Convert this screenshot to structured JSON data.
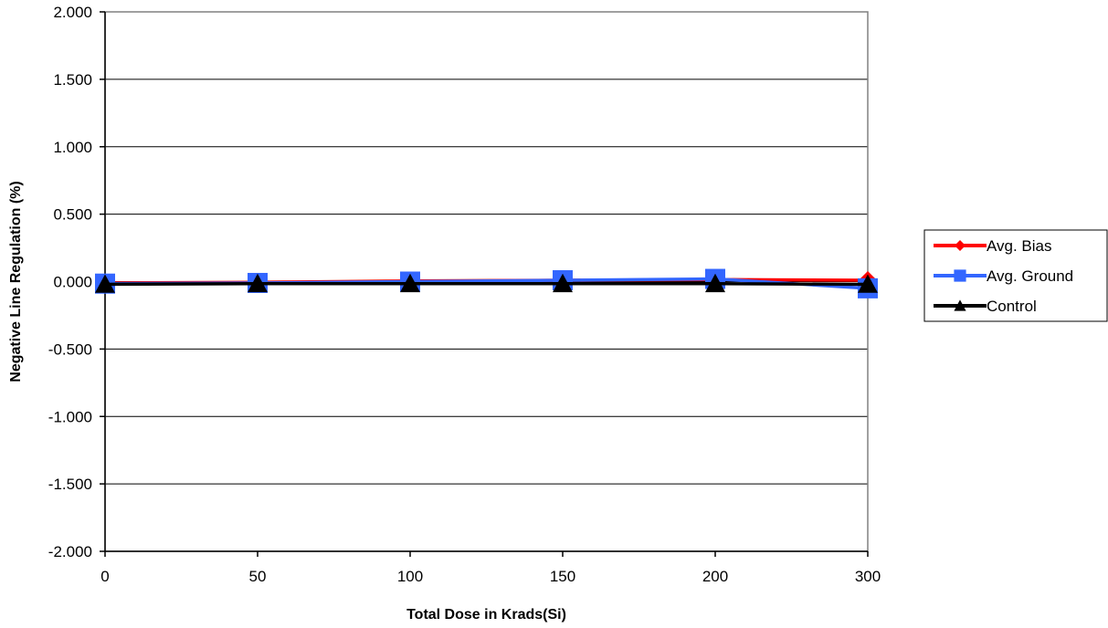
{
  "chart_data": {
    "type": "line",
    "title": "",
    "xlabel": "Total Dose in Krads(Si)",
    "ylabel": "Negative Line Regulation (%)",
    "categories": [
      "0",
      "50",
      "100",
      "150",
      "200",
      "300"
    ],
    "ylim": [
      -2.0,
      2.0
    ],
    "yticks": [
      "2.000",
      "1.500",
      "1.000",
      "0.500",
      "0.000",
      "-0.500",
      "-1.000",
      "-1.500",
      "-2.000"
    ],
    "ytick_values": [
      2.0,
      1.5,
      1.0,
      0.5,
      0.0,
      -0.5,
      -1.0,
      -1.5,
      -2.0
    ],
    "grid": true,
    "legend_position": "right",
    "series": [
      {
        "name": "Avg. Bias",
        "color": "#ff0000",
        "marker": "diamond",
        "values": [
          -0.01,
          -0.005,
          0.005,
          0.01,
          0.015,
          0.01
        ]
      },
      {
        "name": "Avg. Ground",
        "color": "#3366ff",
        "marker": "square",
        "values": [
          -0.015,
          -0.01,
          0.0,
          0.01,
          0.02,
          -0.05
        ]
      },
      {
        "name": "Control",
        "color": "#000000",
        "marker": "triangle",
        "values": [
          -0.02,
          -0.015,
          -0.015,
          -0.015,
          -0.015,
          -0.02
        ]
      }
    ]
  }
}
